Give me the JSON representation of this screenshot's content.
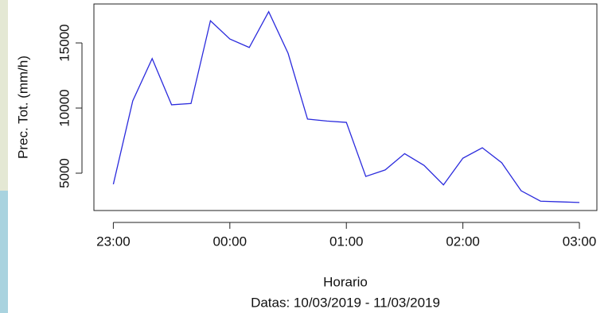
{
  "chart_data": {
    "type": "line",
    "y_label": "Prec. Tot. (mm/h)",
    "x_label": "Horario",
    "subtitle": "Datas: 10/03/2019 - 11/03/2019",
    "x": [
      0,
      10,
      20,
      30,
      40,
      50,
      60,
      70,
      80,
      90,
      100,
      110,
      120,
      130,
      140,
      150,
      160,
      170,
      180,
      190,
      200,
      210,
      220,
      230,
      240
    ],
    "series": [
      {
        "color": "#2b2bdd",
        "values": [
          4150,
          10550,
          13800,
          10250,
          10350,
          16700,
          15300,
          14650,
          17400,
          14200,
          9150,
          9000,
          8900,
          4750,
          5250,
          6500,
          5600,
          4100,
          6150,
          6950,
          5800,
          3650,
          2850,
          2800,
          2750
        ]
      }
    ],
    "xlim": [
      -10,
      249
    ],
    "xticks": [
      {
        "value": 0,
        "label": "23:00"
      },
      {
        "value": 60,
        "label": "00:00"
      },
      {
        "value": 120,
        "label": "01:00"
      },
      {
        "value": 180,
        "label": "02:00"
      },
      {
        "value": 240,
        "label": "03:00"
      }
    ],
    "ylim": [
      2134,
      17990
    ],
    "yticks": [
      5000,
      10000,
      15000
    ]
  }
}
